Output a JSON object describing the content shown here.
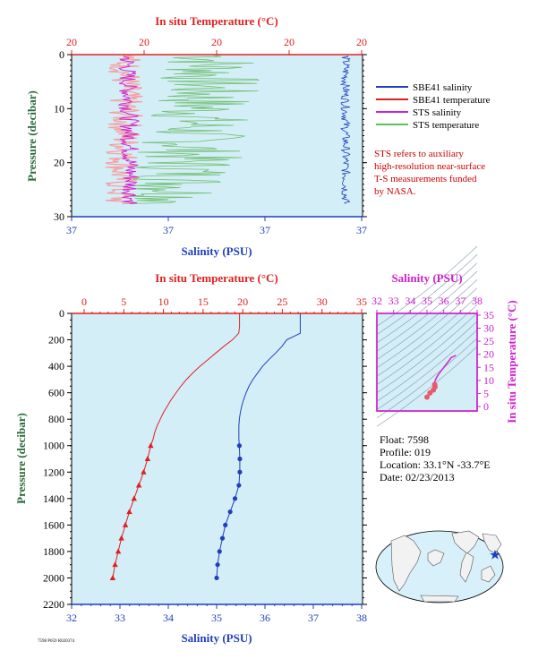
{
  "top_panel": {
    "temp_title": "In situ Temperature (°C)",
    "temp_ticks": [
      "20",
      "20",
      "20",
      "20",
      "20"
    ],
    "sal_title": "Salinity (PSU)",
    "sal_ticks": [
      "37",
      "37",
      "37",
      "37"
    ],
    "pressure_title": "Pressure (decibar)",
    "pressure_ticks": [
      "0",
      "10",
      "20",
      "30"
    ],
    "legend": [
      {
        "label": "SBE41 salinity",
        "color": "#1f3fbf"
      },
      {
        "label": "SBE41 temperature",
        "color": "#e02020"
      },
      {
        "label": "STS salinity",
        "color": "#d020d0"
      },
      {
        "label": "STS temperature",
        "color": "#60c060"
      }
    ],
    "note": [
      "STS refers to auxiliary",
      "high-resolution near-surface",
      "T-S measurements funded",
      "by NASA."
    ]
  },
  "main_panel": {
    "temp_title": "In situ Temperature (°C)",
    "temp_ticks": [
      "0",
      "5",
      "10",
      "15",
      "20",
      "25",
      "30",
      "35"
    ],
    "sal_title": "Salinity (PSU)",
    "sal_ticks": [
      "32",
      "33",
      "34",
      "35",
      "36",
      "37",
      "38"
    ],
    "pressure_title": "Pressure (decibar)",
    "pressure_ticks": [
      "0",
      "200",
      "400",
      "600",
      "800",
      "1000",
      "1200",
      "1400",
      "1600",
      "1800",
      "2000",
      "2200"
    ]
  },
  "ts_panel": {
    "sal_title": "Salinity (PSU)",
    "sal_ticks": [
      "32",
      "33",
      "34",
      "35",
      "36",
      "37",
      "38"
    ],
    "temp_title": "In situ Temperature (°C)",
    "temp_ticks": [
      "0",
      "5",
      "10",
      "15",
      "20",
      "25",
      "30",
      "35"
    ]
  },
  "float_info": {
    "float": "Float:  7598",
    "profile": "Profile:  019",
    "location": "Location:  33.1°N  -33.7°E",
    "date": "Date:  02/23/2013"
  },
  "footer_code": "7598 P059 R020374",
  "colors": {
    "plot_bg": "#d4eef8",
    "temperature_axis": "#e02020",
    "salinity_axis": "#1f3fbf",
    "ts_axis": "#d020d0",
    "pressure_axis": "#2a6a3a"
  },
  "chart_data": [
    {
      "type": "line",
      "panel": "main",
      "ylabel": "Pressure (decibar)",
      "ylim": [
        2200,
        0
      ],
      "xlim_temperature": [
        0,
        35
      ],
      "xlim_salinity": [
        32,
        38
      ],
      "series": [
        {
          "name": "SBE41 temperature",
          "color": "#e02020",
          "pressure": [
            0,
            50,
            100,
            150,
            200,
            250,
            300,
            350,
            400,
            450,
            500,
            550,
            600,
            650,
            700,
            750,
            800,
            850,
            900,
            950,
            1000,
            1100,
            1200,
            1300,
            1400,
            1500,
            1600,
            1700,
            1800,
            1900,
            2000
          ],
          "temperature": [
            19.6,
            19.6,
            19.6,
            19.5,
            18.7,
            17.6,
            16.6,
            15.6,
            14.6,
            13.7,
            12.9,
            12.2,
            11.6,
            11.0,
            10.5,
            10.0,
            9.6,
            9.2,
            8.9,
            8.7,
            8.4,
            8.0,
            7.5,
            6.9,
            6.3,
            5.7,
            5.2,
            4.7,
            4.3,
            3.9,
            3.6
          ],
          "markers": {
            "symbol": "triangle",
            "from_pressure": 1000
          }
        },
        {
          "name": "SBE41 salinity",
          "color": "#1f3fbf",
          "pressure": [
            0,
            50,
            100,
            150,
            200,
            250,
            300,
            350,
            400,
            450,
            500,
            550,
            600,
            650,
            700,
            750,
            800,
            850,
            900,
            950,
            1000,
            1100,
            1200,
            1300,
            1400,
            1500,
            1600,
            1700,
            1800,
            1900,
            2000
          ],
          "salinity": [
            36.73,
            36.73,
            36.73,
            36.73,
            36.45,
            36.35,
            36.22,
            36.08,
            35.95,
            35.85,
            35.75,
            35.67,
            35.61,
            35.56,
            35.52,
            35.49,
            35.47,
            35.46,
            35.46,
            35.46,
            35.47,
            35.48,
            35.48,
            35.46,
            35.38,
            35.28,
            35.18,
            35.12,
            35.06,
            35.02,
            35.0
          ],
          "markers": {
            "symbol": "circle",
            "from_pressure": 1000
          }
        }
      ]
    },
    {
      "type": "line",
      "panel": "near_surface",
      "ylabel": "Pressure (decibar)",
      "ylim": [
        30,
        0
      ],
      "series": [
        {
          "name": "STS temperature",
          "color": "#60c060"
        },
        {
          "name": "STS salinity",
          "color": "#d020d0"
        },
        {
          "name": "SBE41 temperature",
          "color": "#e02020"
        },
        {
          "name": "SBE41 salinity",
          "color": "#1f3fbf"
        }
      ]
    },
    {
      "type": "scatter",
      "panel": "ts_diagram",
      "xlabel": "Salinity (PSU)",
      "ylabel": "In situ Temperature (°C)",
      "xlim": [
        32,
        38
      ],
      "ylim": [
        0,
        35
      ],
      "series": [
        {
          "name": "T-S profile",
          "color": "#d020d0",
          "salinity": [
            36.73,
            36.45,
            36.08,
            35.75,
            35.56,
            35.47,
            35.46,
            35.48,
            35.38,
            35.18,
            35.0
          ],
          "temperature": [
            19.6,
            18.7,
            15.6,
            12.9,
            11.0,
            9.6,
            8.4,
            7.5,
            6.3,
            5.2,
            3.6
          ]
        }
      ]
    }
  ]
}
